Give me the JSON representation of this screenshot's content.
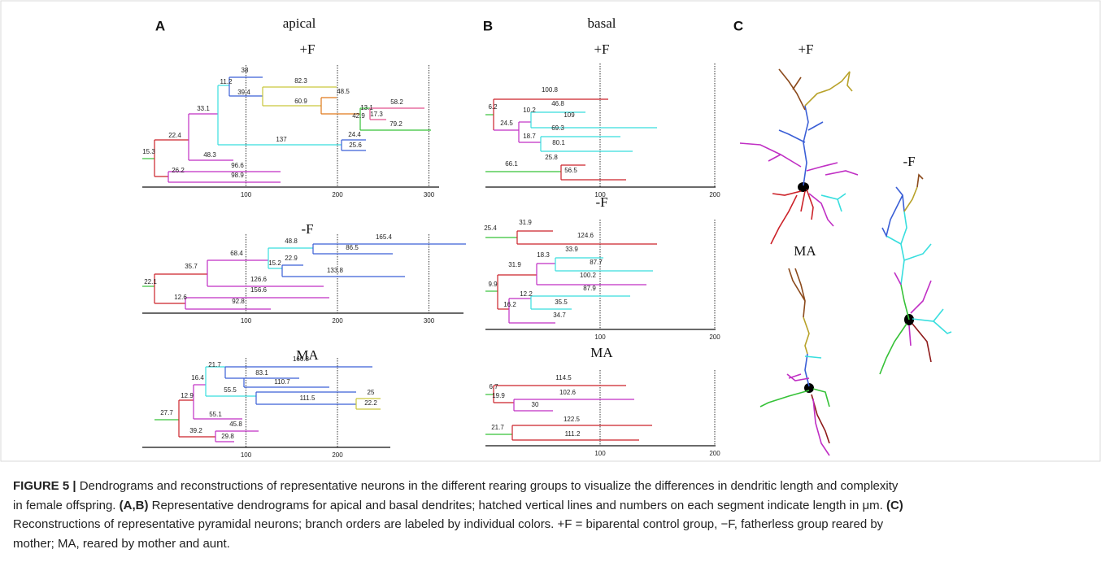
{
  "panels": [
    {
      "letter": "A",
      "title": "apical",
      "plots": [
        {
          "title": "+F",
          "segments": [
            38,
            11.2,
            39.4,
            82.3,
            48.5,
            60.9,
            42.9,
            13.1,
            58.2,
            17.3,
            79.2,
            33.1,
            24.4,
            22.4,
            137,
            25.6,
            48.3,
            15.3,
            96.6,
            26.2,
            98.9
          ],
          "ticks": [
            100,
            200,
            300
          ]
        },
        {
          "title": "-F",
          "segments": [
            165.4,
            48.8,
            86.5,
            68.4,
            22.9,
            35.7,
            15.2,
            133.8,
            126.6,
            22.1,
            156.6,
            12.6,
            92.8
          ],
          "ticks": [
            100,
            200,
            300
          ]
        },
        {
          "title": "MA",
          "segments": [
            160.3,
            21.7,
            83.1,
            16.4,
            110.7,
            55.5,
            12.9,
            25,
            111.5,
            22.2,
            27.7,
            55.1,
            45.8,
            39.2,
            29.8
          ],
          "ticks": [
            100,
            200
          ]
        }
      ]
    },
    {
      "letter": "B",
      "title": "basal",
      "plots": [
        {
          "title": "+F",
          "segments": [
            100.8,
            46.8,
            6.2,
            10.2,
            109,
            24.5,
            69.3,
            18.7,
            80.1,
            25.8,
            66.1,
            56.5
          ],
          "ticks": [
            100,
            200
          ]
        },
        {
          "title": "-F",
          "segments": [
            25.4,
            31.9,
            124.6,
            33.9,
            18.3,
            87.7,
            31.9,
            100.2,
            9.9,
            87.9,
            12.2,
            35.5,
            16.2,
            34.7
          ],
          "ticks": [
            100,
            200
          ]
        },
        {
          "title": "MA",
          "segments": [
            114.5,
            6.7,
            102.6,
            19.9,
            30,
            122.5,
            21.7,
            111.2
          ],
          "ticks": [
            100,
            200
          ]
        }
      ]
    },
    {
      "letter": "C",
      "labels": [
        "+F",
        "-F",
        "MA"
      ]
    }
  ],
  "caption": {
    "lines": [
      [
        {
          "text": "FIGURE 5 |",
          "bold": true
        },
        {
          "text": " Dendrograms and reconstructions of representative neurons in the different rearing groups to visualize the differences in dendritic length and complexity",
          "bold": false
        }
      ],
      [
        {
          "text": "in female offspring. ",
          "bold": false
        },
        {
          "text": "(A,B)",
          "bold": true
        },
        {
          "text": " Representative dendrograms for apical and basal dendrites; hatched vertical lines and numbers on each segment indicate length in μm. ",
          "bold": false
        },
        {
          "text": "(C)",
          "bold": true
        }
      ],
      [
        {
          "text": "Reconstructions of representative pyramidal neurons; branch orders are labeled by individual colors. +F = biparental control group, −F, fatherless group reared by",
          "bold": false
        }
      ],
      [
        {
          "text": "mother; MA, reared by mother and aunt.",
          "bold": false
        }
      ]
    ]
  }
}
